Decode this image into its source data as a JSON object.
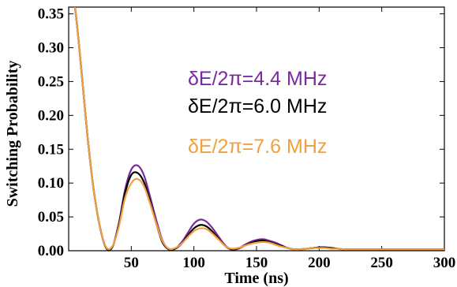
{
  "chart_data": {
    "type": "line",
    "title": "",
    "xlabel": "Time (ns)",
    "ylabel": "Switching Probability",
    "xlim": [
      0,
      300
    ],
    "ylim": [
      0,
      0.36
    ],
    "xticks": [
      50,
      100,
      150,
      200,
      250,
      300
    ],
    "yticks": [
      0.0,
      0.05,
      0.1,
      0.15,
      0.2,
      0.25,
      0.3,
      0.35
    ],
    "x": [
      0,
      5,
      10,
      15,
      20,
      25,
      30,
      35,
      40,
      45,
      50,
      55,
      60,
      65,
      70,
      75,
      80,
      85,
      90,
      95,
      100,
      105,
      110,
      115,
      120,
      125,
      130,
      135,
      140,
      145,
      150,
      155,
      160,
      165,
      170,
      175,
      180,
      185,
      190,
      195,
      200,
      205,
      210,
      215,
      220,
      225,
      230,
      235,
      240,
      245,
      250,
      255,
      260,
      265,
      270,
      275,
      280,
      285,
      290,
      295,
      300
    ],
    "series": [
      {
        "name": "δE/2π=4.4 MHz",
        "color": "#7a2a9a",
        "values": [
          0.4,
          0.36,
          0.27,
          0.17,
          0.09,
          0.035,
          0.004,
          0.006,
          0.04,
          0.09,
          0.12,
          0.126,
          0.112,
          0.08,
          0.045,
          0.015,
          0.002,
          0.003,
          0.012,
          0.026,
          0.04,
          0.046,
          0.043,
          0.033,
          0.02,
          0.008,
          0.002,
          0.003,
          0.008,
          0.013,
          0.016,
          0.017,
          0.015,
          0.012,
          0.008,
          0.004,
          0.002,
          0.002,
          0.003,
          0.004,
          0.005,
          0.005,
          0.004,
          0.003,
          0.002,
          0.002,
          0.002,
          0.002,
          0.002,
          0.002,
          0.002,
          0.002,
          0.002,
          0.002,
          0.002,
          0.002,
          0.002,
          0.002,
          0.002,
          0.002,
          0.002
        ]
      },
      {
        "name": "δE/2π=6.0 MHz",
        "color": "#000000",
        "values": [
          0.4,
          0.36,
          0.27,
          0.17,
          0.09,
          0.035,
          0.004,
          0.006,
          0.038,
          0.085,
          0.112,
          0.115,
          0.102,
          0.073,
          0.04,
          0.012,
          0.002,
          0.003,
          0.01,
          0.022,
          0.033,
          0.038,
          0.036,
          0.028,
          0.017,
          0.007,
          0.002,
          0.003,
          0.007,
          0.011,
          0.014,
          0.015,
          0.013,
          0.01,
          0.007,
          0.004,
          0.002,
          0.002,
          0.003,
          0.004,
          0.005,
          0.005,
          0.004,
          0.003,
          0.002,
          0.002,
          0.002,
          0.002,
          0.002,
          0.002,
          0.002,
          0.002,
          0.002,
          0.002,
          0.002,
          0.002,
          0.002,
          0.002,
          0.002,
          0.002,
          0.002
        ]
      },
      {
        "name": "δE/2π=7.6 MHz",
        "color": "#f0a040",
        "values": [
          0.4,
          0.36,
          0.27,
          0.17,
          0.09,
          0.035,
          0.005,
          0.007,
          0.035,
          0.078,
          0.1,
          0.106,
          0.096,
          0.07,
          0.04,
          0.014,
          0.003,
          0.004,
          0.01,
          0.02,
          0.029,
          0.033,
          0.032,
          0.025,
          0.016,
          0.007,
          0.003,
          0.004,
          0.007,
          0.01,
          0.012,
          0.013,
          0.012,
          0.009,
          0.006,
          0.004,
          0.002,
          0.002,
          0.003,
          0.004,
          0.004,
          0.004,
          0.003,
          0.003,
          0.002,
          0.002,
          0.002,
          0.002,
          0.002,
          0.002,
          0.002,
          0.002,
          0.002,
          0.002,
          0.002,
          0.002,
          0.002,
          0.002,
          0.002,
          0.002,
          0.002
        ]
      }
    ],
    "annotations": [
      {
        "text": "δE/2π=4.4 MHz",
        "color": "#7a2a9a"
      },
      {
        "text": "δE/2π=6.0 MHz",
        "color": "#000000"
      },
      {
        "text": "δE/2π=7.6 MHz",
        "color": "#f0a040"
      }
    ]
  }
}
